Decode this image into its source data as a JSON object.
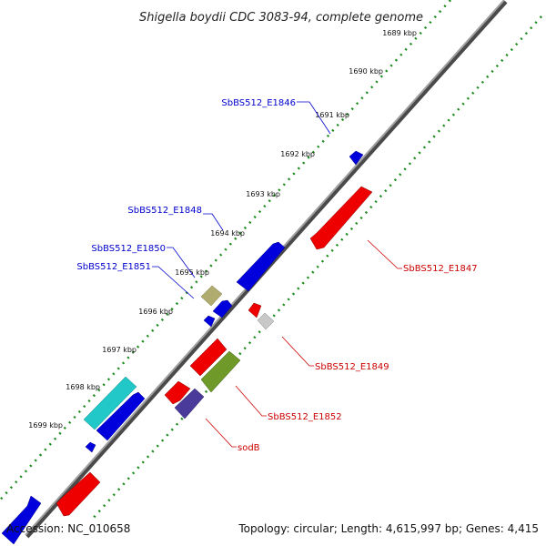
{
  "title": "Shigella boydii CDC 3083-94, complete genome",
  "footer": {
    "accession": "Accession: NC_010658",
    "summary": "Topology: circular; Length: 4,615,997 bp; Genes: 4,415"
  },
  "ticks": [
    "1689 kbp",
    "1690 kbp",
    "1691 kbp",
    "1692 kbp",
    "1693 kbp",
    "1694 kbp",
    "1695 kbp",
    "1696 kbp",
    "1697 kbp",
    "1698 kbp",
    "1699 kbp"
  ],
  "gene_labels": {
    "e1846": "SbBS512_E1846",
    "e1848": "SbBS512_E1848",
    "e1850": "SbBS512_E1850",
    "e1851": "SbBS512_E1851",
    "e1847": "SbBS512_E1847",
    "e1849": "SbBS512_E1849",
    "e1852": "SbBS512_E1852",
    "sodb": "sodB"
  },
  "colors": {
    "forward_strand": "#0000dd",
    "reverse_strand": "#ee0000",
    "tick_dots": "#1a8a1a",
    "backbone": "#808080"
  }
}
